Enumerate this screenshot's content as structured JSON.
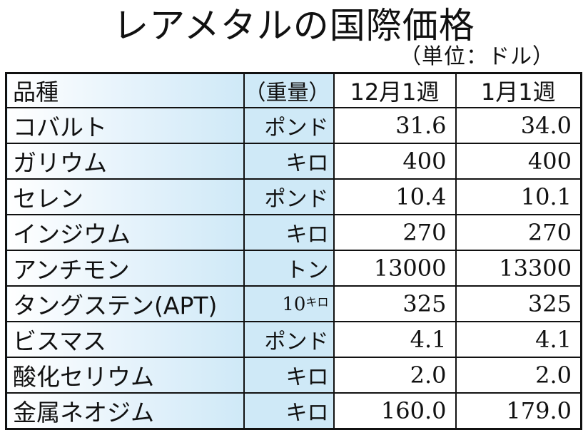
{
  "title": "レアメタルの国際価格",
  "unit_note": "（単位：ドル）",
  "header": {
    "name": "品種",
    "weight": "（重量）",
    "week1": "12月1週",
    "week2": "1月1週"
  },
  "rows": [
    {
      "name": "コバルト",
      "unit": "ポンド",
      "dec": "31.6",
      "jan": "34.0"
    },
    {
      "name": "ガリウム",
      "unit": "キロ",
      "dec": "400",
      "jan": "400"
    },
    {
      "name": "セレン",
      "unit": "ポンド",
      "dec": "10.4",
      "jan": "10.1"
    },
    {
      "name": "インジウム",
      "unit": "キロ",
      "dec": "270",
      "jan": "270"
    },
    {
      "name": "アンチモン",
      "unit": "トン",
      "dec": "13000",
      "jan": "13300"
    },
    {
      "name": "タングステン(APT)",
      "unit": "10",
      "unit_suffix": "キロ",
      "dec": "325",
      "jan": "325"
    },
    {
      "name": "ビスマス",
      "unit": "ポンド",
      "dec": "4.1",
      "jan": "4.1"
    },
    {
      "name": "酸化セリウム",
      "unit": "キロ",
      "dec": "2.0",
      "jan": "2.0"
    },
    {
      "name": "金属ネオジム",
      "unit": "キロ",
      "dec": "160.0",
      "jan": "179.0"
    }
  ],
  "colors": {
    "header_tint": "#cfe9f7",
    "border": "#111111"
  }
}
